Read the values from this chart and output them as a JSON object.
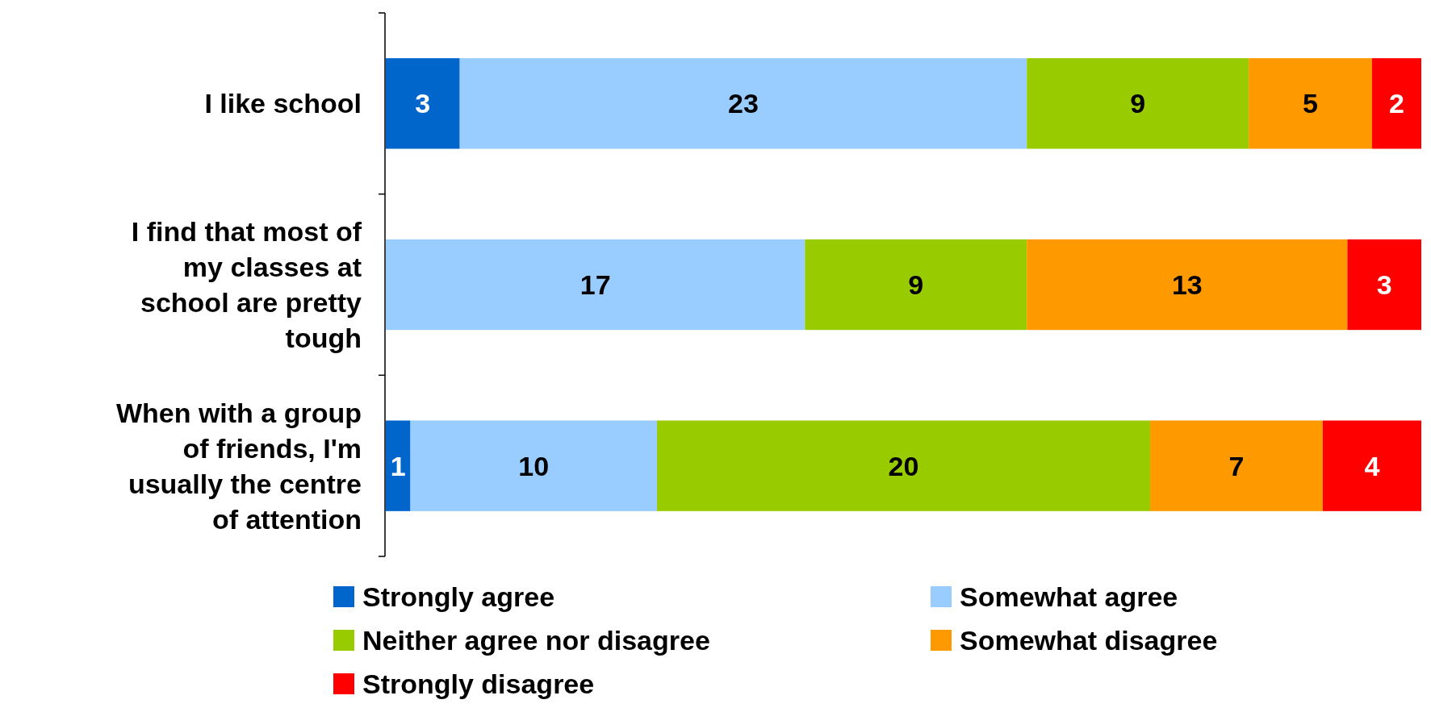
{
  "chart_data": {
    "type": "bar",
    "orientation": "horizontal",
    "stacked": true,
    "data_labels": true,
    "legend": "bottom",
    "categories": [
      "I like school",
      "I find that most of my classes at school are pretty tough",
      "When with a group of friends, I'm usually the centre of attention"
    ],
    "series": [
      {
        "name": "Strongly agree",
        "color": "#0066cc",
        "values": [
          3,
          null,
          1
        ]
      },
      {
        "name": "Somewhat agree",
        "color": "#99ccff",
        "values": [
          23,
          17,
          10
        ]
      },
      {
        "name": "Neither agree nor disagree",
        "color": "#99cc00",
        "values": [
          9,
          9,
          20
        ]
      },
      {
        "name": "Somewhat disagree",
        "color": "#ff9900",
        "values": [
          5,
          13,
          7
        ]
      },
      {
        "name": "Strongly disagree",
        "color": "#ff0000",
        "values": [
          2,
          3,
          4
        ]
      }
    ]
  }
}
